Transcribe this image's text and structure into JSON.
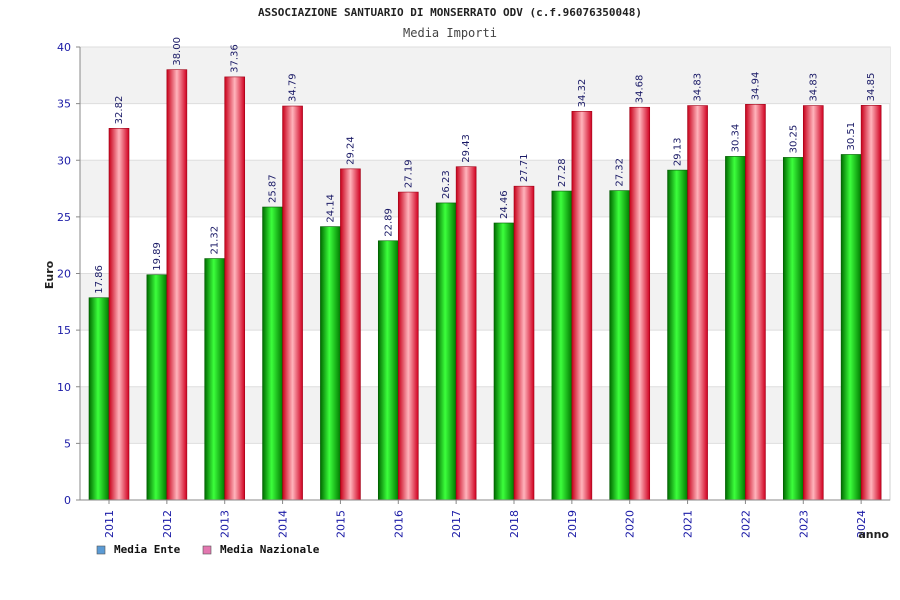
{
  "chart_data": {
    "type": "bar",
    "title": "ASSOCIAZIONE SANTUARIO DI MONSERRATO ODV (c.f.96076350048)",
    "subtitle": "Media Importi",
    "xlabel": "anno",
    "ylabel": "Euro",
    "ylim": [
      0,
      40
    ],
    "yticks": [
      "0",
      "5",
      "10",
      "15",
      "20",
      "25",
      "30",
      "35",
      "40"
    ],
    "grid": true,
    "legend_position": "bottom-left",
    "categories": [
      "2011",
      "2012",
      "2013",
      "2014",
      "2015",
      "2016",
      "2017",
      "2018",
      "2019",
      "2020",
      "2021",
      "2022",
      "2023",
      "2024"
    ],
    "series": [
      {
        "name": "Media Ente",
        "color": "#00b400",
        "legend_color": "#5b9bd5",
        "values": [
          17.86,
          19.89,
          21.32,
          25.87,
          24.14,
          22.89,
          26.23,
          24.46,
          27.28,
          27.32,
          29.13,
          30.34,
          30.25,
          30.51
        ],
        "labels": [
          "17.86",
          "19.89",
          "21.32",
          "25.87",
          "24.14",
          "22.89",
          "26.23",
          "24.46",
          "27.28",
          "27.32",
          "29.13",
          "30.34",
          "30.25",
          "30.51"
        ]
      },
      {
        "name": "Media Nazionale",
        "color": "#e8001e",
        "legend_color": "#e377b0",
        "values": [
          32.82,
          38.0,
          37.36,
          34.79,
          29.24,
          27.19,
          29.43,
          27.71,
          34.32,
          34.68,
          34.83,
          34.94,
          34.83,
          34.85
        ],
        "labels": [
          "32.82",
          "38.00",
          "37.36",
          "34.79",
          "29.24",
          "27.19",
          "29.43",
          "27.71",
          "34.32",
          "34.68",
          "34.83",
          "34.94",
          "34.83",
          "34.85"
        ]
      }
    ]
  }
}
